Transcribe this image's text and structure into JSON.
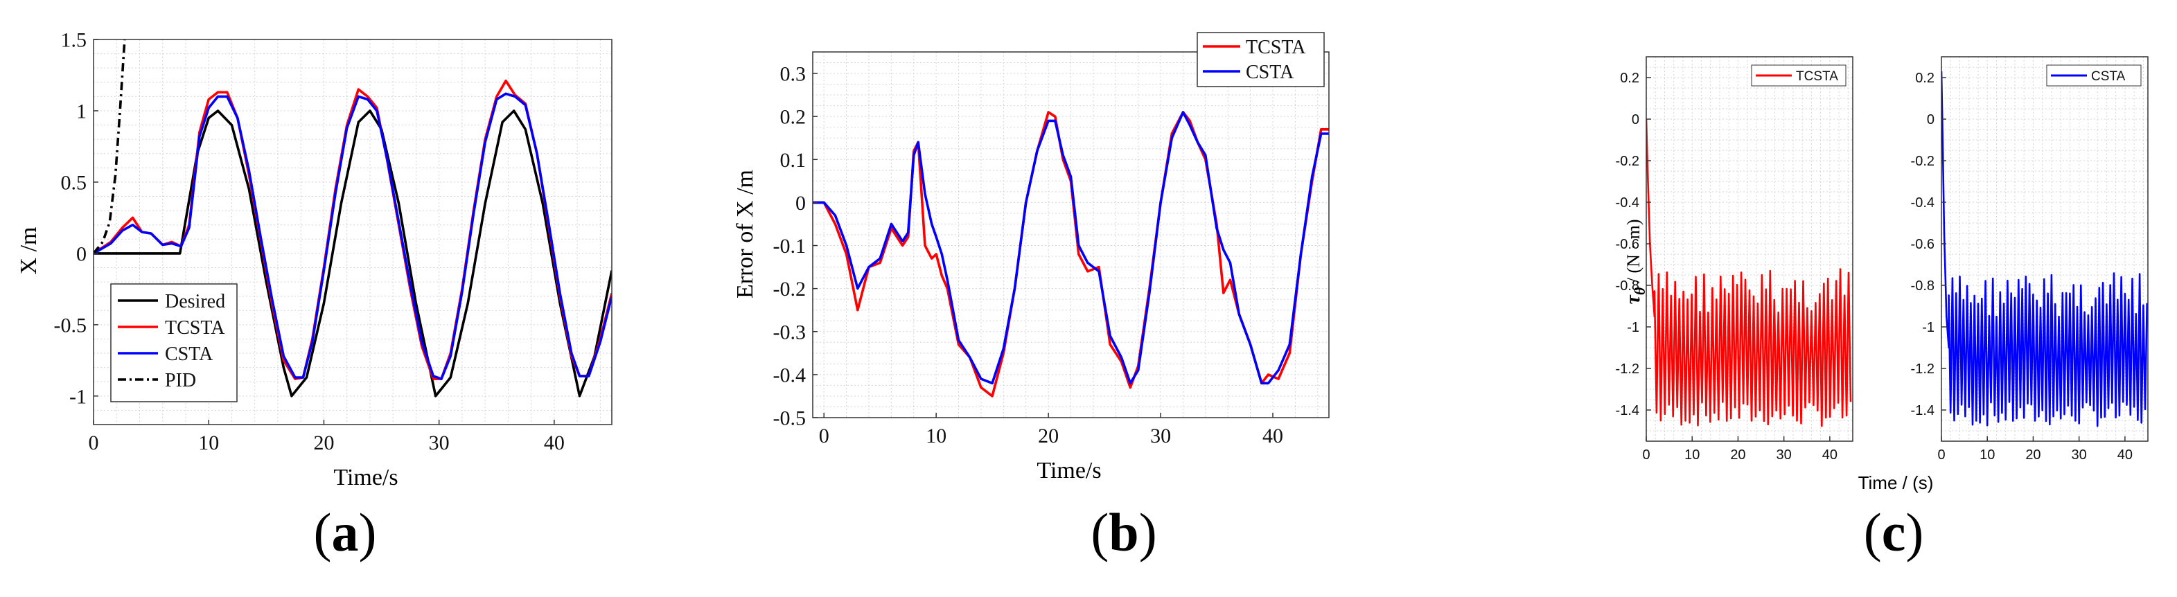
{
  "panel_labels": {
    "a": "a",
    "b": "b",
    "c": "c"
  },
  "colors": {
    "desired": "#000000",
    "tcsta": "#ff0000",
    "csta": "#0000ff",
    "pid": "#000000",
    "grid": "#cccccc",
    "axis": "#555555"
  },
  "chart_data": [
    {
      "id": "a",
      "type": "line",
      "title": "",
      "xlabel": "Time/s",
      "ylabel": "X /m",
      "xlim": [
        0,
        45
      ],
      "ylim": [
        -1.2,
        1.5
      ],
      "xticks": [
        0,
        10,
        20,
        30,
        40
      ],
      "xtick_labels": [
        "0",
        "10",
        "20",
        "30",
        "40"
      ],
      "yticks": [
        -1,
        -0.5,
        0,
        0.5,
        1,
        1.5
      ],
      "ytick_labels": [
        "-1",
        "-0.5",
        "0",
        "0.5",
        "1",
        "1.5"
      ],
      "legend_position": "bottom-left",
      "series": [
        {
          "name": "Desired",
          "style": "solid",
          "color": "#000000",
          "x": [
            0,
            7.5,
            9,
            10,
            10.8,
            12,
            13.5,
            15,
            16.5,
            17.2,
            18.5,
            20,
            21.5,
            23,
            24,
            25,
            26.5,
            28,
            29.7,
            31,
            32.5,
            34,
            35.5,
            36.5,
            37.5,
            39,
            40.5,
            42.2,
            43.5,
            45
          ],
          "y": [
            0,
            0,
            0.7,
            0.95,
            1,
            0.9,
            0.45,
            -0.2,
            -0.8,
            -1,
            -0.87,
            -0.35,
            0.35,
            0.92,
            1,
            0.87,
            0.35,
            -0.35,
            -1,
            -0.87,
            -0.35,
            0.35,
            0.92,
            1,
            0.87,
            0.35,
            -0.35,
            -1,
            -0.72,
            -0.12
          ]
        },
        {
          "name": "TCSTA",
          "style": "solid",
          "color": "#ff0000",
          "x": [
            0,
            1.5,
            2.5,
            3.4,
            4.2,
            5,
            6,
            6.8,
            7.6,
            8.3,
            9.2,
            10,
            10.8,
            11.6,
            12.5,
            13.5,
            14.5,
            15.5,
            16.5,
            17.5,
            18.2,
            19,
            20,
            21,
            22,
            23,
            23.8,
            24.6,
            25.5,
            26.5,
            27.5,
            28.5,
            29.5,
            30.2,
            31,
            32,
            33,
            34,
            35,
            35.8,
            36.6,
            37.5,
            38.5,
            39.5,
            40.5,
            41.5,
            42.2,
            43,
            44,
            45
          ],
          "y": [
            0,
            0.08,
            0.18,
            0.25,
            0.15,
            0.14,
            0.06,
            0.08,
            0.05,
            0.2,
            0.85,
            1.08,
            1.13,
            1.13,
            0.95,
            0.55,
            0.1,
            -0.35,
            -0.75,
            -0.88,
            -0.87,
            -0.6,
            -0.1,
            0.45,
            0.9,
            1.15,
            1.1,
            1.02,
            0.65,
            0.2,
            -0.25,
            -0.65,
            -0.88,
            -0.88,
            -0.7,
            -0.25,
            0.3,
            0.8,
            1.1,
            1.21,
            1.11,
            1.05,
            0.7,
            0.2,
            -0.3,
            -0.72,
            -0.86,
            -0.86,
            -0.6,
            -0.28
          ]
        },
        {
          "name": "CSTA",
          "style": "solid",
          "color": "#0000ff",
          "x": [
            0,
            1.5,
            2.5,
            3.4,
            4.2,
            5,
            6,
            6.8,
            7.6,
            8.3,
            9.2,
            10,
            10.8,
            11.6,
            12.5,
            13.5,
            14.5,
            15.5,
            16.5,
            17.5,
            18.2,
            19,
            20,
            21,
            22,
            23,
            23.8,
            24.6,
            25.5,
            26.5,
            27.5,
            28.5,
            29.5,
            30.2,
            31,
            32,
            33,
            34,
            35,
            35.8,
            36.6,
            37.5,
            38.5,
            39.5,
            40.5,
            41.5,
            42.2,
            43,
            44,
            45
          ],
          "y": [
            0,
            0.07,
            0.16,
            0.2,
            0.15,
            0.14,
            0.06,
            0.07,
            0.05,
            0.18,
            0.82,
            1.02,
            1.1,
            1.1,
            0.95,
            0.58,
            0.12,
            -0.32,
            -0.72,
            -0.87,
            -0.87,
            -0.62,
            -0.12,
            0.42,
            0.88,
            1.1,
            1.08,
            1.0,
            0.66,
            0.22,
            -0.22,
            -0.62,
            -0.86,
            -0.88,
            -0.72,
            -0.27,
            0.28,
            0.78,
            1.08,
            1.12,
            1.1,
            1.04,
            0.7,
            0.22,
            -0.28,
            -0.7,
            -0.86,
            -0.86,
            -0.62,
            -0.3
          ]
        },
        {
          "name": "PID",
          "style": "dashdot",
          "color": "#000000",
          "x": [
            0,
            0.8,
            1.4,
            1.9,
            2.3,
            2.7
          ],
          "y": [
            0,
            0.08,
            0.22,
            0.55,
            1.0,
            1.5
          ]
        }
      ]
    },
    {
      "id": "b",
      "type": "line",
      "title": "",
      "xlabel": "Time/s",
      "ylabel": "Error of X /m",
      "xlim": [
        -1,
        45
      ],
      "ylim": [
        -0.5,
        0.35
      ],
      "xticks": [
        0,
        10,
        20,
        30,
        40
      ],
      "xtick_labels": [
        "0",
        "10",
        "20",
        "30",
        "40"
      ],
      "yticks": [
        -0.5,
        -0.4,
        -0.3,
        -0.2,
        -0.1,
        0,
        0.1,
        0.2,
        0.3
      ],
      "ytick_labels": [
        "-0.5",
        "-0.4",
        "-0.3",
        "-0.2",
        "-0.1",
        "0",
        "0.1",
        "0.2",
        "0.3"
      ],
      "legend_position": "top-right",
      "series": [
        {
          "name": "TCSTA",
          "color": "#ff0000",
          "x": [
            -1,
            0,
            1,
            2,
            3,
            4,
            5,
            6,
            7,
            7.5,
            8,
            8.4,
            9,
            9.6,
            10,
            10.5,
            11,
            12,
            13,
            14,
            15,
            16,
            17,
            18,
            19,
            20,
            20.6,
            21.3,
            22,
            22.7,
            23.5,
            24.5,
            25.5,
            26.5,
            27.3,
            28,
            29,
            30,
            31,
            32,
            32.6,
            33.3,
            34,
            35,
            35.6,
            36.2,
            37,
            38,
            39,
            39.6,
            40.5,
            41.5,
            42.5,
            43.5,
            44.3,
            45
          ],
          "y": [
            0,
            0,
            -0.05,
            -0.12,
            -0.25,
            -0.15,
            -0.14,
            -0.06,
            -0.1,
            -0.08,
            0.12,
            0.14,
            -0.1,
            -0.13,
            -0.12,
            -0.17,
            -0.2,
            -0.33,
            -0.36,
            -0.43,
            -0.45,
            -0.35,
            -0.2,
            0,
            0.12,
            0.21,
            0.2,
            0.1,
            0.05,
            -0.12,
            -0.16,
            -0.15,
            -0.33,
            -0.37,
            -0.43,
            -0.38,
            -0.2,
            0,
            0.16,
            0.21,
            0.19,
            0.14,
            0.1,
            -0.05,
            -0.21,
            -0.18,
            -0.26,
            -0.33,
            -0.42,
            -0.4,
            -0.41,
            -0.35,
            -0.12,
            0.05,
            0.17,
            0.17
          ]
        },
        {
          "name": "CSTA",
          "color": "#0000ff",
          "x": [
            -1,
            0,
            1,
            2,
            3,
            4,
            5,
            6,
            7,
            7.5,
            8,
            8.4,
            9,
            9.6,
            10,
            10.5,
            11,
            12,
            13,
            14,
            15,
            16,
            17,
            18,
            19,
            20,
            20.6,
            21.3,
            22,
            22.7,
            23.5,
            24.5,
            25.5,
            26.5,
            27.3,
            28,
            29,
            30,
            31,
            32,
            32.6,
            33.3,
            34,
            35,
            35.6,
            36.2,
            37,
            38,
            39,
            39.6,
            40.5,
            41.5,
            42.5,
            43.5,
            44.3,
            45
          ],
          "y": [
            0,
            0,
            -0.03,
            -0.1,
            -0.2,
            -0.15,
            -0.13,
            -0.05,
            -0.09,
            -0.07,
            0.11,
            0.14,
            0.02,
            -0.05,
            -0.08,
            -0.12,
            -0.18,
            -0.32,
            -0.36,
            -0.41,
            -0.42,
            -0.34,
            -0.2,
            0,
            0.12,
            0.19,
            0.19,
            0.11,
            0.06,
            -0.1,
            -0.14,
            -0.16,
            -0.31,
            -0.36,
            -0.42,
            -0.39,
            -0.21,
            0,
            0.15,
            0.21,
            0.18,
            0.14,
            0.11,
            -0.06,
            -0.11,
            -0.14,
            -0.26,
            -0.33,
            -0.42,
            -0.42,
            -0.39,
            -0.33,
            -0.12,
            0.06,
            0.16,
            0.16
          ]
        }
      ]
    },
    {
      "id": "c1",
      "type": "line",
      "title": "",
      "xlabel": "",
      "ylabel": "τ_θ / (N · m)",
      "xlim": [
        0,
        45
      ],
      "ylim": [
        -1.55,
        0.3
      ],
      "xticks": [
        0,
        10,
        20,
        30,
        40
      ],
      "xtick_labels": [
        "0",
        "10",
        "20",
        "30",
        "40"
      ],
      "yticks": [
        -1.4,
        -1.2,
        -1,
        -0.8,
        -0.6,
        -0.4,
        -0.2,
        0,
        0.2
      ],
      "ytick_labels": [
        "-1.4",
        "-1.2",
        "-1",
        "-0.8",
        "-0.6",
        "-0.4",
        "-0.2",
        "0",
        "0.2"
      ],
      "legend_position": "top-right",
      "series": [
        {
          "name": "TCSTA",
          "color": "#ff0000",
          "description_note": "transient then oscillation",
          "transient": {
            "x": [
              0,
              0.3,
              0.8,
              1.3,
              1.8
            ],
            "y": [
              0.0,
              -0.25,
              -0.6,
              -0.8,
              -0.95
            ]
          },
          "oscillation": {
            "x_start": 1.8,
            "x_end": 45,
            "period": 0.9,
            "upper": -0.72,
            "lower": -1.48
          }
        }
      ]
    },
    {
      "id": "c2",
      "type": "line",
      "title": "",
      "xlabel": "Time / (s)",
      "ylabel": "",
      "xlim": [
        0,
        45
      ],
      "ylim": [
        -1.55,
        0.3
      ],
      "xticks": [
        0,
        10,
        20,
        30,
        40
      ],
      "xtick_labels": [
        "0",
        "10",
        "20",
        "30",
        "40"
      ],
      "yticks": [
        -1.4,
        -1.2,
        -1,
        -0.8,
        -0.6,
        -0.4,
        -0.2,
        0,
        0.2
      ],
      "ytick_labels": [
        "-1.4",
        "-1.2",
        "-1",
        "-0.8",
        "-0.6",
        "-0.4",
        "-0.2",
        "0",
        "0.2"
      ],
      "legend_position": "top-right",
      "series": [
        {
          "name": "CSTA",
          "color": "#0000ff",
          "transient": {
            "x": [
              0,
              0.2,
              0.6,
              1.1,
              1.6
            ],
            "y": [
              0.23,
              0.0,
              -0.55,
              -0.95,
              -1.1
            ]
          },
          "oscillation": {
            "x_start": 1.6,
            "x_end": 45,
            "period": 0.8,
            "upper": -0.74,
            "lower": -1.48
          }
        }
      ]
    }
  ]
}
